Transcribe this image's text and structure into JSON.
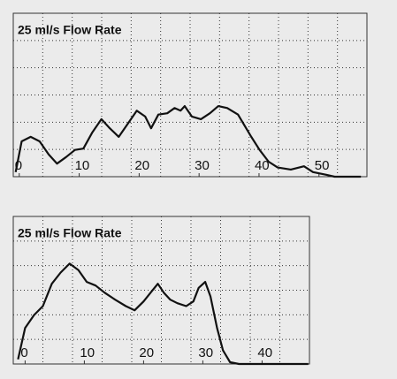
{
  "chart_data": [
    {
      "type": "line",
      "title": "25 ml/s Flow Rate",
      "x": [
        -0.6,
        0.4,
        1.9,
        3.4,
        4.9,
        6.3,
        7.8,
        9.3,
        10.7,
        12.2,
        13.7,
        15.1,
        16.6,
        18.1,
        19.6,
        21,
        22,
        23.2,
        24.7,
        25.9,
        26.9,
        27.6,
        28.8,
        30.3,
        31.8,
        33.2,
        34.7,
        36.5,
        38.7,
        40.1,
        41.6,
        43.1,
        45.3,
        47.5,
        49,
        51.2,
        52.6,
        57
      ],
      "values": [
        0.7,
        5.4,
        6.1,
        5.4,
        3.4,
        2,
        3,
        4.1,
        4.3,
        6.8,
        8.8,
        7.4,
        6.1,
        8.1,
        10.1,
        9.2,
        7.4,
        9.5,
        9.7,
        10.5,
        10.1,
        10.8,
        9.2,
        8.8,
        9.7,
        10.8,
        10.5,
        9.5,
        6.1,
        4.1,
        2.3,
        1.4,
        1.1,
        1.6,
        0.7,
        0.3,
        0,
        0
      ],
      "color": "#111111",
      "xlim": [
        -1,
        58
      ],
      "xticks": [
        0,
        10,
        20,
        30,
        40,
        50
      ],
      "ylim": [
        0,
        25
      ],
      "grid": true
    },
    {
      "type": "line",
      "title": "25 ml/s Flow Rate",
      "x": [
        -1.2,
        0,
        1.5,
        3,
        4.5,
        6,
        7.5,
        9,
        10.4,
        11.9,
        13.4,
        15.2,
        17,
        18.5,
        20,
        21.2,
        22.4,
        23.4,
        24.5,
        25.7,
        27.2,
        28.4,
        29.3,
        30.4,
        31.3,
        32.4,
        33.4,
        34.6,
        36.1,
        47.8
      ],
      "values": [
        0.8,
        6.1,
        8.3,
        9.8,
        13.6,
        15.5,
        17,
        15.9,
        13.9,
        13.3,
        12.1,
        10.9,
        9.8,
        9.1,
        10.6,
        12.1,
        13.6,
        12.1,
        10.9,
        10.3,
        9.8,
        10.6,
        12.9,
        13.9,
        11.4,
        6.1,
        2.3,
        0.3,
        0,
        0
      ],
      "color": "#111111",
      "xlim": [
        -2,
        48
      ],
      "xticks": [
        0,
        10,
        20,
        30,
        40
      ],
      "ylim": [
        0,
        25
      ],
      "grid": true
    }
  ]
}
